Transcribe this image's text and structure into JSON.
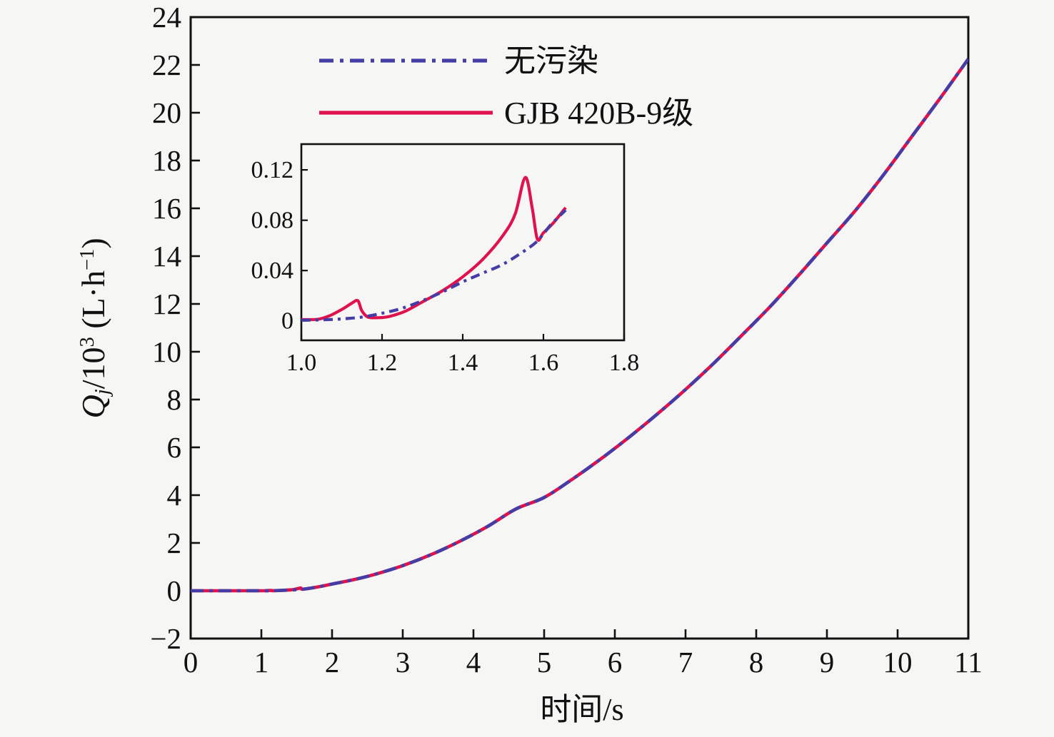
{
  "figure": {
    "background": "#f6f6f4",
    "frame_color": "#111111",
    "blue": "#453DA6",
    "red": "#E0124E"
  },
  "legend": {
    "items": [
      {
        "label": "无污染",
        "color": "#453DA6",
        "style": "dashdot"
      },
      {
        "label": "GJB 420B-9级",
        "color": "#E0124E",
        "style": "solid"
      }
    ]
  },
  "y_axis_label_parts": {
    "q": "Q",
    "sub": "j",
    "slash10": "/10",
    "sup3": "3",
    "unit": " (L·h",
    "supm1": "−1",
    "close": ")"
  },
  "chart_data": [
    {
      "id": "main",
      "type": "line",
      "title": "",
      "xlabel": "时间/s",
      "ylabel": "Qj/10^3 (L·h^-1)",
      "xlim": [
        0,
        11
      ],
      "ylim": [
        -2,
        24
      ],
      "grid": false,
      "legend_position": "upper-left-inside",
      "xticks": [
        0,
        1,
        2,
        3,
        4,
        5,
        6,
        7,
        8,
        9,
        10,
        11
      ],
      "xtick_labels": [
        "0",
        "1",
        "2",
        "3",
        "4",
        "5",
        "6",
        "7",
        "8",
        "9",
        "10",
        "11"
      ],
      "yticks": [
        -2,
        0,
        2,
        4,
        6,
        8,
        10,
        12,
        14,
        16,
        18,
        20,
        22,
        24
      ],
      "ytick_labels": [
        "−2",
        "0",
        "2",
        "4",
        "6",
        "8",
        "10",
        "12",
        "14",
        "16",
        "18",
        "20",
        "22",
        "24"
      ],
      "series": [
        {
          "name": "GJB 420B-9级",
          "color": "#E0124E",
          "style": "solid",
          "x": [
            0,
            0.4,
            0.8,
            1.0,
            1.07,
            1.14,
            1.16,
            1.3,
            1.45,
            1.555,
            1.585,
            1.8,
            2,
            2.3,
            2.6,
            3,
            3.4,
            3.8,
            4.2,
            4.6,
            5,
            5.4,
            5.8,
            6.2,
            6.6,
            7,
            7.4,
            7.8,
            8.2,
            8.6,
            9,
            9.4,
            9.8,
            10.2,
            10.6,
            11
          ],
          "y": [
            0,
            0,
            0,
            0.001,
            0.004,
            0.016,
            0.003,
            0.015,
            0.049,
            0.114,
            0.065,
            0.16,
            0.28,
            0.46,
            0.68,
            1.05,
            1.51,
            2.06,
            2.69,
            3.42,
            3.9,
            4.67,
            5.51,
            6.42,
            7.39,
            8.42,
            9.52,
            10.7,
            11.9,
            13.2,
            14.55,
            15.9,
            17.4,
            19.0,
            20.6,
            22.25
          ]
        },
        {
          "name": "无污染",
          "color": "#453DA6",
          "style": "dashdot",
          "x": [
            0,
            0.4,
            0.8,
            1.0,
            1.2,
            1.4,
            1.6,
            1.8,
            2,
            2.3,
            2.6,
            3,
            3.4,
            3.8,
            4.2,
            4.6,
            5,
            5.4,
            5.8,
            6.2,
            6.6,
            7,
            7.4,
            7.8,
            8.2,
            8.6,
            9,
            9.4,
            9.8,
            10.2,
            10.6,
            11
          ],
          "y": [
            0,
            0,
            0,
            0.001,
            0.006,
            0.031,
            0.07,
            0.16,
            0.28,
            0.46,
            0.68,
            1.05,
            1.51,
            2.06,
            2.69,
            3.42,
            3.9,
            4.67,
            5.51,
            6.42,
            7.39,
            8.42,
            9.52,
            10.7,
            11.9,
            13.2,
            14.55,
            15.9,
            17.4,
            19.0,
            20.6,
            22.25
          ]
        }
      ],
      "zoom_rect": {
        "x": [
          0.95,
          1.88
        ],
        "y": [
          -0.28,
          1.05
        ]
      }
    },
    {
      "id": "inset",
      "type": "line",
      "xlim": [
        1.0,
        1.8
      ],
      "ylim": [
        -0.0155,
        0.1405
      ],
      "grid": false,
      "xticks": [
        1.0,
        1.2,
        1.4,
        1.6,
        1.8
      ],
      "xtick_labels": [
        "1.0",
        "1.2",
        "1.4",
        "1.6",
        "1.8"
      ],
      "yticks": [
        0,
        0.04,
        0.08,
        0.12
      ],
      "ytick_labels": [
        "0",
        "0.04",
        "0.08",
        "0.12"
      ],
      "series": [
        {
          "name": "GJB 420B-9级",
          "color": "#E0124E",
          "style": "solid",
          "x": [
            1.0,
            1.04,
            1.07,
            1.1,
            1.125,
            1.14,
            1.15,
            1.165,
            1.19,
            1.21,
            1.23,
            1.26,
            1.3,
            1.35,
            1.4,
            1.45,
            1.5,
            1.53,
            1.555,
            1.572,
            1.585,
            1.6,
            1.625,
            1.655
          ],
          "y": [
            0.001,
            0.0012,
            0.004,
            0.009,
            0.014,
            0.016,
            0.008,
            0.003,
            0.0025,
            0.003,
            0.0045,
            0.008,
            0.015,
            0.024,
            0.035,
            0.049,
            0.068,
            0.085,
            0.114,
            0.09,
            0.065,
            0.07,
            0.078,
            0.09
          ]
        },
        {
          "name": "无污染",
          "color": "#453DA6",
          "style": "dashdot",
          "x": [
            1.0,
            1.05,
            1.1,
            1.15,
            1.2,
            1.25,
            1.3,
            1.35,
            1.4,
            1.45,
            1.5,
            1.55,
            1.58,
            1.6,
            1.62,
            1.655
          ],
          "y": [
            0.0005,
            0.0008,
            0.0015,
            0.003,
            0.006,
            0.01,
            0.016,
            0.023,
            0.031,
            0.038,
            0.045,
            0.055,
            0.062,
            0.069,
            0.077,
            0.088
          ]
        }
      ]
    }
  ]
}
